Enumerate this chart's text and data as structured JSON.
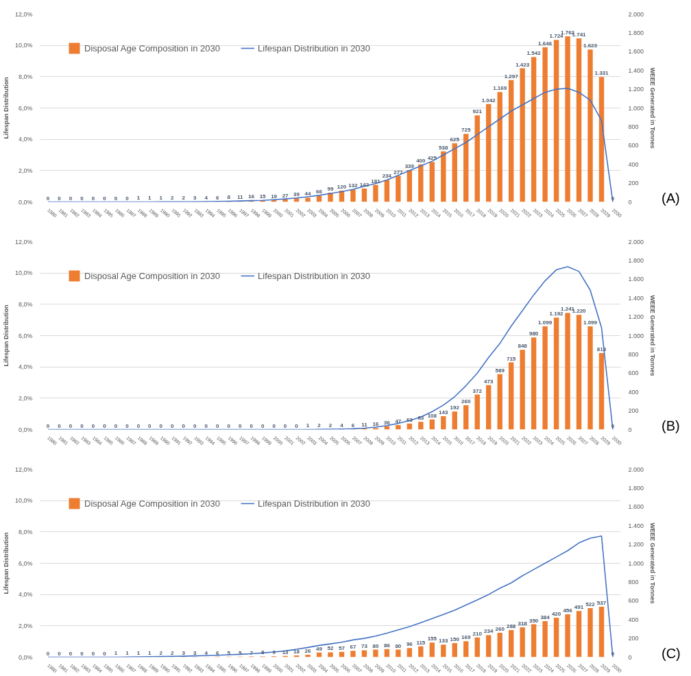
{
  "chart_data": [
    {
      "type": "bar",
      "categories": [
        "1980",
        "1981",
        "1982",
        "1983",
        "1984",
        "1985",
        "1986",
        "1987",
        "1988",
        "1989",
        "1990",
        "1991",
        "1992",
        "1993",
        "1994",
        "1995",
        "1996",
        "1997",
        "1998",
        "1999",
        "2000",
        "2001",
        "2002",
        "2003",
        "2004",
        "2005",
        "2006",
        "2007",
        "2008",
        "2009",
        "2010",
        "2011",
        "2012",
        "2013",
        "2014",
        "2015",
        "2016",
        "2017",
        "2018",
        "2019",
        "2020",
        "2021",
        "2022",
        "2023",
        "2024",
        "2025",
        "2026",
        "2027",
        "2028",
        "2029",
        "2030"
      ],
      "ylabel": "Lifespan Distribution",
      "y2label": "WEEE Generated in Tonnes",
      "ylim": [
        0,
        12
      ],
      "yticks": [
        {
          "value": 0,
          "label": "0,0%"
        },
        {
          "value": 2,
          "label": "2,0%"
        },
        {
          "value": 4,
          "label": "4,0%"
        },
        {
          "value": 6,
          "label": "6,0%"
        },
        {
          "value": 8,
          "label": "8,0%"
        },
        {
          "value": 10,
          "label": "10,0%"
        },
        {
          "value": 12,
          "label": "12,0%"
        }
      ],
      "y2lim": [
        0,
        2000
      ],
      "y2ticks": [
        0,
        200,
        400,
        600,
        800,
        {
          "value": 1000,
          "label": "1.000"
        },
        {
          "value": 1200,
          "label": "1.200"
        },
        {
          "value": 1400,
          "label": "1.400"
        },
        {
          "value": 1600,
          "label": "1.600"
        },
        {
          "value": 1800,
          "label": "1.800"
        },
        {
          "value": 2000,
          "label": "2.000"
        }
      ],
      "series": [
        {
          "name": "Disposal Age Composition in 2030",
          "axis": "y2",
          "color": "#ed7d31",
          "values": [
            0,
            0,
            0,
            0,
            0,
            0,
            0,
            0,
            1,
            1,
            1,
            2,
            2,
            3,
            4,
            6,
            8,
            11,
            16,
            15,
            19,
            27,
            39,
            44,
            66,
            99,
            120,
            132,
            142,
            181,
            234,
            277,
            339,
            400,
            425,
            538,
            625,
            725,
            921,
            1042,
            1169,
            1297,
            1423,
            1542,
            1646,
            1724,
            1762,
            1741,
            1623,
            1331,
            0
          ],
          "value_labels": [
            "0",
            "0",
            "0",
            "0",
            "0",
            "0",
            "0",
            "0",
            "1",
            "1",
            "1",
            "2",
            "2",
            "3",
            "4",
            "6",
            "8",
            "11",
            "16",
            "15",
            "19",
            "27",
            "39",
            "44",
            "66",
            "99",
            "120",
            "132",
            "142",
            "181",
            "234",
            "277",
            "339",
            "400",
            "425",
            "538",
            "625",
            "725",
            "921",
            "1.042",
            "1.169",
            "1.297",
            "1.423",
            "1.542",
            "1.646",
            "1.724",
            "1.762",
            "1.741",
            "1.623",
            "1.331",
            "0"
          ]
        },
        {
          "name": "Lifespan Distribution in 2030",
          "type": "line",
          "color": "#4472c4",
          "values": [
            0,
            0,
            0,
            0,
            0,
            0,
            0,
            0,
            0,
            0,
            0.01,
            0.01,
            0.01,
            0.01,
            0.02,
            0.03,
            0.04,
            0.06,
            0.08,
            0.1,
            0.14,
            0.19,
            0.25,
            0.33,
            0.42,
            0.54,
            0.66,
            0.8,
            1.0,
            1.17,
            1.4,
            1.7,
            2.0,
            2.3,
            2.6,
            3.0,
            3.4,
            3.8,
            4.3,
            4.8,
            5.3,
            5.8,
            6.2,
            6.6,
            7.0,
            7.2,
            7.26,
            7.0,
            6.5,
            5.2,
            0
          ]
        }
      ],
      "legend": "top left",
      "grid": "y",
      "annotations": [
        "(A)"
      ]
    },
    {
      "type": "bar",
      "categories": [
        "1980",
        "1981",
        "1982",
        "1983",
        "1984",
        "1985",
        "1986",
        "1987",
        "1988",
        "1989",
        "1990",
        "1991",
        "1992",
        "1993",
        "1994",
        "1995",
        "1996",
        "1997",
        "1998",
        "1999",
        "2000",
        "2001",
        "2002",
        "2003",
        "2004",
        "2005",
        "2006",
        "2007",
        "2008",
        "2009",
        "2010",
        "2011",
        "2012",
        "2013",
        "2014",
        "2015",
        "2016",
        "2017",
        "2018",
        "2019",
        "2020",
        "2021",
        "2022",
        "2023",
        "2024",
        "2025",
        "2026",
        "2027",
        "2028",
        "2029",
        "2030"
      ],
      "ylabel": "Lifespan Distribution",
      "y2label": "WEEE Generated in Tonnes",
      "ylim": [
        0,
        12
      ],
      "yticks": [
        {
          "value": 0,
          "label": "0,0%"
        },
        {
          "value": 2,
          "label": "2,0%"
        },
        {
          "value": 4,
          "label": "4,0%"
        },
        {
          "value": 6,
          "label": "6,0%"
        },
        {
          "value": 8,
          "label": "8,0%"
        },
        {
          "value": 10,
          "label": "10,0%"
        },
        {
          "value": 12,
          "label": "12,0%"
        }
      ],
      "y2lim": [
        0,
        2000
      ],
      "y2ticks": [
        0,
        200,
        400,
        600,
        800,
        {
          "value": 1000,
          "label": "1.000"
        },
        {
          "value": 1200,
          "label": "1.200"
        },
        {
          "value": 1400,
          "label": "1.400"
        },
        {
          "value": 1600,
          "label": "1.600"
        },
        {
          "value": 1800,
          "label": "1.800"
        },
        {
          "value": 2000,
          "label": "2.000"
        }
      ],
      "series": [
        {
          "name": "Disposal Age Composition in 2030",
          "axis": "y2",
          "color": "#ed7d31",
          "values": [
            0,
            0,
            0,
            0,
            0,
            0,
            0,
            0,
            0,
            0,
            0,
            0,
            0,
            0,
            0,
            0,
            0,
            0,
            0,
            0,
            0,
            0,
            0,
            1,
            2,
            2,
            4,
            6,
            11,
            16,
            36,
            47,
            63,
            83,
            108,
            143,
            192,
            260,
            372,
            473,
            589,
            715,
            848,
            980,
            1099,
            1192,
            1241,
            1220,
            1099,
            813,
            0
          ],
          "value_labels": [
            "0",
            "0",
            "0",
            "0",
            "0",
            "0",
            "0",
            "0",
            "0",
            "0",
            "0",
            "0",
            "0",
            "0",
            "0",
            "0",
            "0",
            "0",
            "0",
            "0",
            "0",
            "0",
            "0",
            "1",
            "2",
            "2",
            "4",
            "6",
            "11",
            "16",
            "36",
            "47",
            "63",
            "83",
            "108",
            "143",
            "192",
            "260",
            "372",
            "473",
            "589",
            "715",
            "848",
            "980",
            "1.099",
            "1.192",
            "1.241",
            "1.220",
            "1.099",
            "813",
            "0"
          ]
        },
        {
          "name": "Lifespan Distribution in 2030",
          "type": "line",
          "color": "#4472c4",
          "values": [
            0,
            0,
            0,
            0,
            0,
            0,
            0,
            0,
            0,
            0,
            0,
            0,
            0,
            0,
            0,
            0,
            0,
            0,
            0,
            0,
            0,
            0,
            0,
            0,
            0.01,
            0.02,
            0.03,
            0.05,
            0.09,
            0.15,
            0.25,
            0.39,
            0.57,
            0.8,
            1.14,
            1.56,
            2.1,
            2.8,
            3.6,
            4.6,
            5.5,
            6.6,
            7.6,
            8.6,
            9.5,
            10.2,
            10.4,
            10.1,
            8.9,
            6.5,
            0
          ]
        }
      ],
      "legend": "top left",
      "grid": "y",
      "annotations": [
        "(B)"
      ]
    },
    {
      "type": "bar",
      "categories": [
        "1980",
        "1981",
        "1982",
        "1983",
        "1984",
        "1985",
        "1986",
        "1987",
        "1988",
        "1989",
        "1990",
        "1991",
        "1992",
        "1993",
        "1994",
        "1995",
        "1996",
        "1997",
        "1998",
        "1999",
        "2000",
        "2001",
        "2002",
        "2003",
        "2004",
        "2005",
        "2006",
        "2007",
        "2008",
        "2009",
        "2010",
        "2011",
        "2012",
        "2013",
        "2014",
        "2015",
        "2016",
        "2017",
        "2018",
        "2019",
        "2020",
        "2021",
        "2022",
        "2023",
        "2024",
        "2025",
        "2026",
        "2027",
        "2028",
        "2029",
        "2030"
      ],
      "ylabel": "Lifespan Distribution",
      "y2label": "WEEE Generated in Tonnes",
      "ylim": [
        0,
        12
      ],
      "yticks": [
        {
          "value": 0,
          "label": "0,0%"
        },
        {
          "value": 2,
          "label": "2,0%"
        },
        {
          "value": 4,
          "label": "4,0%"
        },
        {
          "value": 6,
          "label": "6,0%"
        },
        {
          "value": 8,
          "label": "8,0%"
        },
        {
          "value": 10,
          "label": "10,0%"
        },
        {
          "value": 12,
          "label": "12,0%"
        }
      ],
      "y2lim": [
        0,
        2000
      ],
      "y2ticks": [
        0,
        200,
        400,
        600,
        800,
        {
          "value": 1000,
          "label": "1.000"
        },
        {
          "value": 1200,
          "label": "1.200"
        },
        {
          "value": 1400,
          "label": "1.400"
        },
        {
          "value": 1600,
          "label": "1.600"
        },
        {
          "value": 1800,
          "label": "1.800"
        },
        {
          "value": 2000,
          "label": "2.000"
        }
      ],
      "series": [
        {
          "name": "Disposal Age Composition in 2030",
          "axis": "y2",
          "color": "#ed7d31",
          "values": [
            0,
            0,
            0,
            0,
            0,
            0,
            1,
            1,
            1,
            1,
            2,
            2,
            3,
            3,
            4,
            6,
            5,
            5,
            7,
            8,
            9,
            13,
            18,
            26,
            49,
            52,
            57,
            67,
            73,
            80,
            86,
            80,
            96,
            115,
            155,
            133,
            150,
            169,
            210,
            234,
            260,
            288,
            318,
            350,
            384,
            420,
            456,
            491,
            522,
            537,
            0
          ],
          "value_labels": [
            "0",
            "0",
            "0",
            "0",
            "0",
            "0",
            "1",
            "1",
            "1",
            "1",
            "2",
            "2",
            "3",
            "3",
            "4",
            "6",
            "5",
            "5",
            "7",
            "8",
            "9",
            "13",
            "18",
            "26",
            "49",
            "52",
            "57",
            "67",
            "73",
            "80",
            "86",
            "80",
            "96",
            "115",
            "155",
            "133",
            "150",
            "169",
            "210",
            "234",
            "260",
            "288",
            "318",
            "350",
            "384",
            "420",
            "456",
            "491",
            "522",
            "537",
            "0"
          ]
        },
        {
          "name": "Lifespan Distribution in 2030",
          "type": "line",
          "color": "#4472c4",
          "values": [
            0,
            0,
            0,
            0,
            0,
            0,
            0,
            0.01,
            0.02,
            0.03,
            0.04,
            0.05,
            0.06,
            0.08,
            0.1,
            0.12,
            0.15,
            0.18,
            0.22,
            0.27,
            0.33,
            0.4,
            0.5,
            0.62,
            0.75,
            0.85,
            0.95,
            1.1,
            1.2,
            1.35,
            1.53,
            1.74,
            1.95,
            2.2,
            2.46,
            2.73,
            3.0,
            3.33,
            3.66,
            4.0,
            4.4,
            4.74,
            5.2,
            5.6,
            6.0,
            6.4,
            6.8,
            7.3,
            7.6,
            7.74,
            0
          ]
        }
      ],
      "legend": "top left",
      "grid": "y",
      "annotations": [
        "(C)"
      ]
    }
  ]
}
